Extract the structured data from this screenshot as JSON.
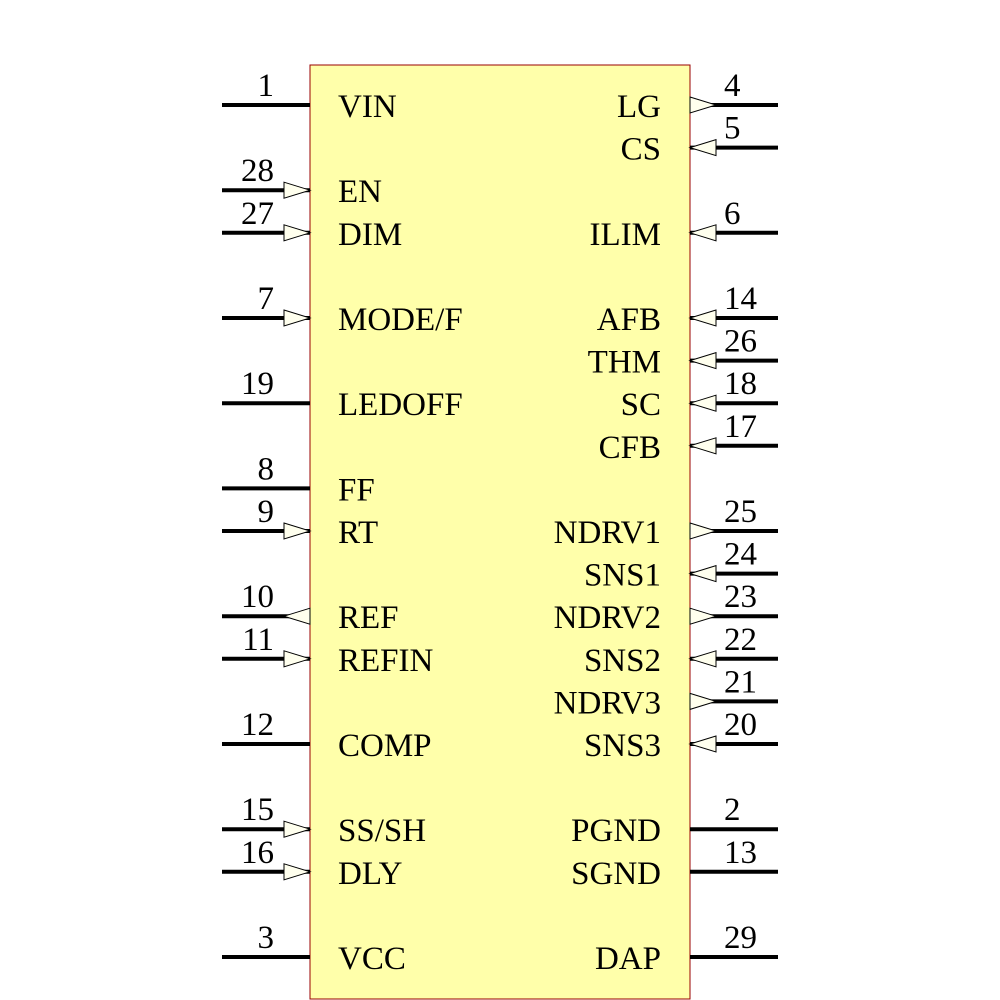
{
  "component": {
    "body_fill": "#ffffaa",
    "body_stroke": "#990000",
    "pin_color": "#000000",
    "arrow_fill": "#ffffee"
  },
  "left_pins": [
    {
      "number": "1",
      "name": "VIN",
      "direction": "none"
    },
    {
      "number": "28",
      "name": "EN",
      "direction": "in"
    },
    {
      "number": "27",
      "name": "DIM",
      "direction": "in"
    },
    {
      "number": "7",
      "name": "MODE/F",
      "direction": "in"
    },
    {
      "number": "19",
      "name": "LEDOFF",
      "direction": "none"
    },
    {
      "number": "8",
      "name": "FF",
      "direction": "none"
    },
    {
      "number": "9",
      "name": "RT",
      "direction": "in"
    },
    {
      "number": "10",
      "name": "REF",
      "direction": "out"
    },
    {
      "number": "11",
      "name": "REFIN",
      "direction": "in"
    },
    {
      "number": "12",
      "name": "COMP",
      "direction": "none"
    },
    {
      "number": "15",
      "name": "SS/SH",
      "direction": "in"
    },
    {
      "number": "16",
      "name": "DLY",
      "direction": "in"
    },
    {
      "number": "3",
      "name": "VCC",
      "direction": "none"
    }
  ],
  "right_pins": [
    {
      "number": "4",
      "name": "LG",
      "direction": "out"
    },
    {
      "number": "5",
      "name": "CS",
      "direction": "in"
    },
    {
      "number": "6",
      "name": "ILIM",
      "direction": "in"
    },
    {
      "number": "14",
      "name": "AFB",
      "direction": "in"
    },
    {
      "number": "26",
      "name": "THM",
      "direction": "in"
    },
    {
      "number": "18",
      "name": "SC",
      "direction": "in"
    },
    {
      "number": "17",
      "name": "CFB",
      "direction": "in"
    },
    {
      "number": "25",
      "name": "NDRV1",
      "direction": "out"
    },
    {
      "number": "24",
      "name": "SNS1",
      "direction": "in"
    },
    {
      "number": "23",
      "name": "NDRV2",
      "direction": "out"
    },
    {
      "number": "22",
      "name": "SNS2",
      "direction": "in"
    },
    {
      "number": "21",
      "name": "NDRV3",
      "direction": "out"
    },
    {
      "number": "20",
      "name": "SNS3",
      "direction": "in"
    },
    {
      "number": "2",
      "name": "PGND",
      "direction": "none"
    },
    {
      "number": "13",
      "name": "SGND",
      "direction": "none"
    },
    {
      "number": "29",
      "name": "DAP",
      "direction": "none"
    }
  ]
}
